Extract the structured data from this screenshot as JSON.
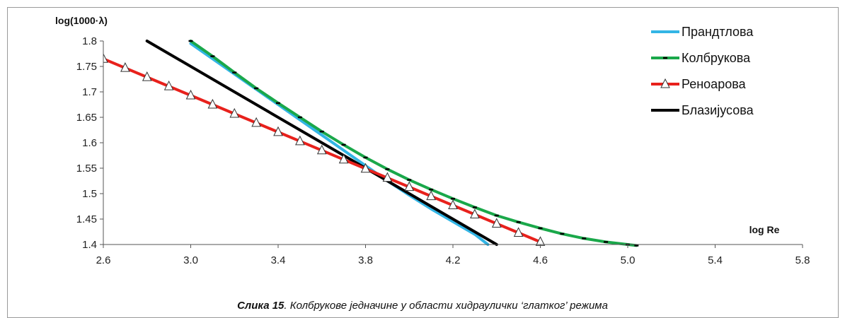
{
  "caption": {
    "label": "Слика 15",
    "text": ". Колбрукове једначине у области хидраулички ‘глатког’ режима"
  },
  "chart_data": {
    "type": "line",
    "title": "",
    "xlabel": "log Re",
    "ylabel": "log(1000·λ)",
    "xlim": [
      2.6,
      5.8
    ],
    "ylim": [
      1.4,
      1.8
    ],
    "xticks": [
      "2.6",
      "3.0",
      "3.4",
      "3.8",
      "4.2",
      "4.6",
      "5.0",
      "5.4",
      "5.8"
    ],
    "yticks": [
      "1.4",
      "1.45",
      "1.5",
      "1.55",
      "1.6",
      "1.65",
      "1.7",
      "1.75",
      "1.8"
    ],
    "grid": false,
    "legend_position": "top-right",
    "series": [
      {
        "name": "Прандтлова",
        "color": "#33b5e5",
        "marker": "none",
        "x": [
          3.0,
          3.1,
          3.2,
          3.3,
          3.4,
          3.5,
          3.6,
          3.7,
          3.8,
          3.9,
          4.0,
          4.1,
          4.2,
          4.3,
          4.36
        ],
        "y": [
          1.795,
          1.765,
          1.735,
          1.705,
          1.675,
          1.645,
          1.615,
          1.585,
          1.555,
          1.525,
          1.497,
          1.47,
          1.445,
          1.42,
          1.4
        ]
      },
      {
        "name": "Колбрукова",
        "color": "#1aa84a",
        "marker": "dash",
        "x": [
          3.0,
          3.1,
          3.2,
          3.3,
          3.4,
          3.5,
          3.6,
          3.7,
          3.8,
          3.9,
          4.0,
          4.1,
          4.2,
          4.3,
          4.4,
          4.5,
          4.6,
          4.7,
          4.8,
          4.9,
          5.0,
          5.04
        ],
        "y": [
          1.8,
          1.77,
          1.738,
          1.707,
          1.678,
          1.65,
          1.622,
          1.596,
          1.571,
          1.548,
          1.527,
          1.508,
          1.49,
          1.473,
          1.457,
          1.444,
          1.432,
          1.421,
          1.412,
          1.405,
          1.4,
          1.398
        ]
      },
      {
        "name": "Реноарова",
        "color": "#e8211c",
        "marker": "triangle",
        "x": [
          2.6,
          2.7,
          2.8,
          2.9,
          3.0,
          3.1,
          3.2,
          3.3,
          3.4,
          3.5,
          3.6,
          3.7,
          3.8,
          3.9,
          4.0,
          4.1,
          4.2,
          4.3,
          4.4,
          4.5,
          4.6
        ],
        "y": [
          1.765,
          1.747,
          1.729,
          1.711,
          1.693,
          1.675,
          1.657,
          1.639,
          1.621,
          1.603,
          1.585,
          1.567,
          1.549,
          1.531,
          1.513,
          1.495,
          1.477,
          1.459,
          1.441,
          1.423,
          1.405
        ]
      },
      {
        "name": "Блазијусова",
        "color": "#000000",
        "marker": "none",
        "x": [
          2.8,
          4.4
        ],
        "y": [
          1.8,
          1.4
        ]
      }
    ]
  }
}
